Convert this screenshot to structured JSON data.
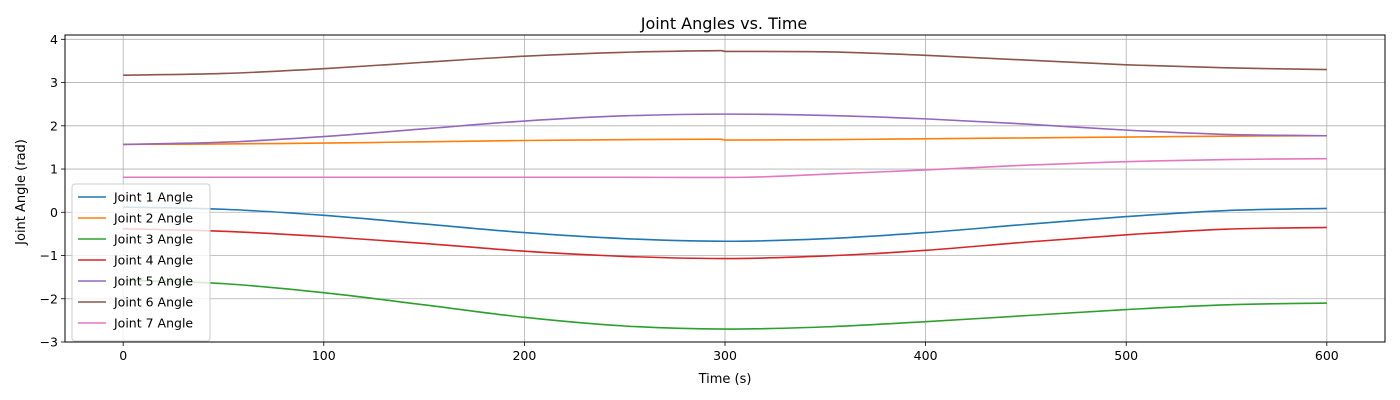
{
  "chart_data": {
    "type": "line",
    "title": "Joint Angles vs. Time",
    "xlabel": "Time (s)",
    "ylabel": "Joint Angle (rad)",
    "xlim": [
      -29,
      629
    ],
    "ylim": [
      -3.0,
      4.1
    ],
    "xticks": [
      0,
      100,
      200,
      300,
      400,
      500,
      600
    ],
    "yticks": [
      -3,
      -2,
      -1,
      0,
      1,
      2,
      3,
      4
    ],
    "xtick_labels": [
      "0",
      "100",
      "200",
      "300",
      "400",
      "500",
      "600"
    ],
    "ytick_labels": [
      "−3",
      "−2",
      "−1",
      "0",
      "1",
      "2",
      "3",
      "4"
    ],
    "grid": true,
    "legend_position": "lower-left",
    "series": [
      {
        "name": "Joint 1 Angle",
        "color": "#1f77b4",
        "x": [
          0,
          50,
          100,
          150,
          200,
          250,
          300,
          350,
          400,
          450,
          500,
          550,
          600
        ],
        "y": [
          0.12,
          0.07,
          -0.07,
          -0.27,
          -0.47,
          -0.61,
          -0.67,
          -0.61,
          -0.47,
          -0.28,
          -0.1,
          0.04,
          0.09
        ]
      },
      {
        "name": "Joint 2 Angle",
        "color": "#ff7f0e",
        "x": [
          0,
          50,
          100,
          150,
          200,
          250,
          298,
          300,
          350,
          400,
          450,
          500,
          550,
          600
        ],
        "y": [
          1.57,
          1.58,
          1.6,
          1.63,
          1.66,
          1.68,
          1.69,
          1.67,
          1.68,
          1.7,
          1.72,
          1.74,
          1.76,
          1.77
        ]
      },
      {
        "name": "Joint 3 Angle",
        "color": "#2ca02c",
        "x": [
          0,
          50,
          100,
          150,
          200,
          250,
          300,
          350,
          400,
          450,
          500,
          550,
          600
        ],
        "y": [
          -1.57,
          -1.65,
          -1.86,
          -2.14,
          -2.43,
          -2.63,
          -2.7,
          -2.65,
          -2.53,
          -2.39,
          -2.25,
          -2.14,
          -2.1
        ]
      },
      {
        "name": "Joint 4 Angle",
        "color": "#d62728",
        "x": [
          0,
          50,
          100,
          150,
          200,
          250,
          300,
          350,
          400,
          450,
          500,
          550,
          600
        ],
        "y": [
          -0.38,
          -0.44,
          -0.56,
          -0.72,
          -0.9,
          -1.02,
          -1.07,
          -1.01,
          -0.88,
          -0.69,
          -0.52,
          -0.39,
          -0.35
        ]
      },
      {
        "name": "Joint 5 Angle",
        "color": "#9467bd",
        "x": [
          0,
          50,
          100,
          150,
          200,
          250,
          300,
          350,
          400,
          450,
          500,
          550,
          600
        ],
        "y": [
          1.57,
          1.62,
          1.75,
          1.93,
          2.11,
          2.23,
          2.27,
          2.24,
          2.16,
          2.04,
          1.9,
          1.8,
          1.77
        ]
      },
      {
        "name": "Joint 6 Angle",
        "color": "#8c564b",
        "x": [
          0,
          50,
          100,
          150,
          200,
          250,
          298,
          300,
          350,
          400,
          450,
          500,
          550,
          600
        ],
        "y": [
          3.17,
          3.21,
          3.32,
          3.47,
          3.61,
          3.7,
          3.74,
          3.72,
          3.71,
          3.63,
          3.52,
          3.41,
          3.34,
          3.3
        ]
      },
      {
        "name": "Joint 7 Angle",
        "color": "#e377c2",
        "x": [
          0,
          50,
          100,
          150,
          200,
          250,
          310,
          350,
          400,
          450,
          500,
          550,
          600
        ],
        "y": [
          0.81,
          0.81,
          0.81,
          0.81,
          0.81,
          0.81,
          0.81,
          0.88,
          0.98,
          1.09,
          1.17,
          1.22,
          1.24
        ]
      }
    ]
  }
}
